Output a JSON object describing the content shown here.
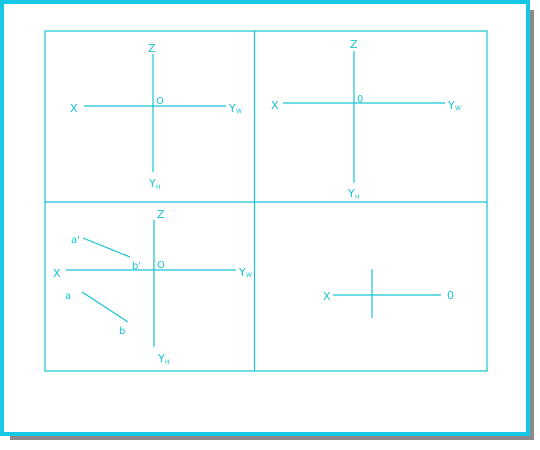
{
  "colors": {
    "line": "#16c3d3",
    "frame": "#16c8e6",
    "shadow": "#8a8a8a",
    "background": "#ffffff"
  },
  "panels": {
    "top_left": {
      "axis_x": "X",
      "axis_z": "Z",
      "origin": "O",
      "axis_yw": "Y",
      "axis_yw_sub": "W",
      "axis_yh": "Y",
      "axis_yh_sub": "H"
    },
    "top_right": {
      "axis_x": "X",
      "axis_z": "Z",
      "origin": "0",
      "axis_yw": "Y",
      "axis_yw_sub": "W",
      "axis_yh": "Y",
      "axis_yh_sub": "H"
    },
    "bottom_left": {
      "axis_x": "X",
      "axis_z": "Z",
      "origin": "O",
      "axis_yw": "Y",
      "axis_yw_sub": "W",
      "axis_yh": "Y",
      "axis_yh_sub": "H",
      "point_a_prime": "a'",
      "point_b_prime": "b'",
      "point_a": "a",
      "point_b": "b"
    },
    "bottom_right": {
      "axis_x": "X",
      "origin": "0"
    }
  }
}
